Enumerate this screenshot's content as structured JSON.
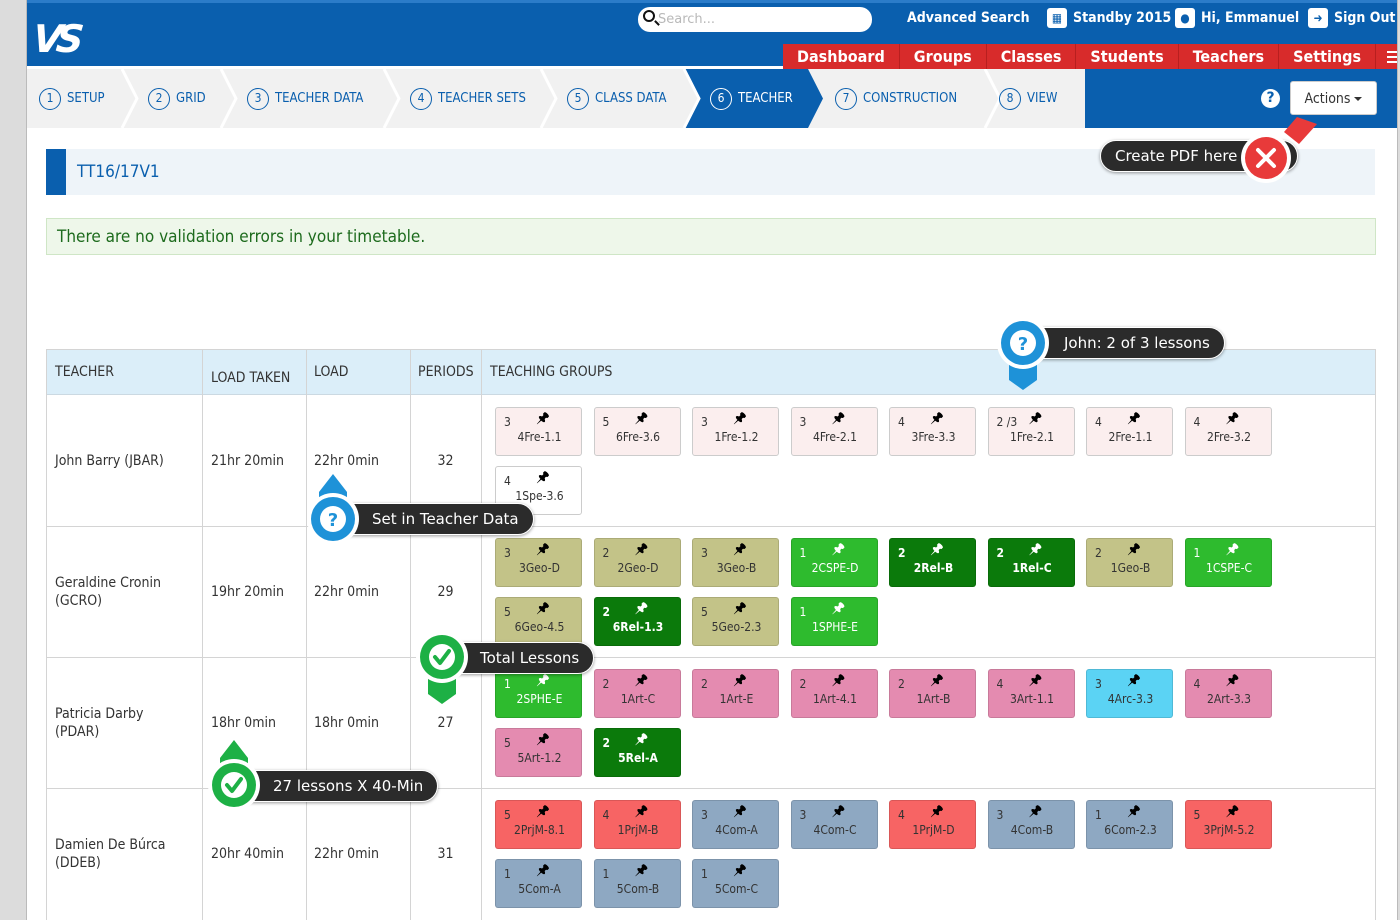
{
  "header": {
    "logo": "VS",
    "search_placeholder": "Search...",
    "advanced_search": "Advanced Search",
    "calendar": "Standby 2015",
    "user": "Hi, Emmanuel",
    "signout": "Sign Out",
    "nav": [
      "Dashboard",
      "Groups",
      "Classes",
      "Students",
      "Teachers",
      "Settings"
    ]
  },
  "steps": [
    {
      "num": "1",
      "label": "SETUP"
    },
    {
      "num": "2",
      "label": "GRID"
    },
    {
      "num": "3",
      "label": "TEACHER DATA"
    },
    {
      "num": "4",
      "label": "TEACHER SETS"
    },
    {
      "num": "5",
      "label": "CLASS DATA"
    },
    {
      "num": "6",
      "label": "TEACHER",
      "active": true
    },
    {
      "num": "7",
      "label": "CONSTRUCTION"
    },
    {
      "num": "8",
      "label": "VIEW"
    }
  ],
  "actions_label": "Actions",
  "help_symbol": "?",
  "timetable_name": "TT16/17V1",
  "validation_message": "There are no validation errors in your timetable.",
  "table": {
    "headers": {
      "teacher": "TEACHER",
      "load_taken": "LOAD TAKEN",
      "load": "LOAD",
      "periods": "PERIODS",
      "groups": "TEACHING GROUPS"
    },
    "rows": [
      {
        "teacher_line1": "John Barry (JBAR)",
        "teacher_line2": "",
        "load_taken": "21hr 20min",
        "load": "22hr 0min",
        "periods": "32",
        "groups": [
          {
            "count": "3",
            "code": "4Fre-1.1",
            "color": "#fbeeee",
            "text": "#333"
          },
          {
            "count": "5",
            "code": "6Fre-3.6",
            "color": "#fbeeee",
            "text": "#333"
          },
          {
            "count": "3",
            "code": "1Fre-1.2",
            "color": "#fbeeee",
            "text": "#333"
          },
          {
            "count": "3",
            "code": "4Fre-2.1",
            "color": "#fbeeee",
            "text": "#333"
          },
          {
            "count": "4",
            "code": "3Fre-3.3",
            "color": "#fbeeee",
            "text": "#333"
          },
          {
            "count": "2 /3",
            "code": "1Fre-2.1",
            "color": "#fbeeee",
            "text": "#333"
          },
          {
            "count": "4",
            "code": "2Fre-1.1",
            "color": "#fbeeee",
            "text": "#333"
          },
          {
            "count": "4",
            "code": "2Fre-3.2",
            "color": "#fbeeee",
            "text": "#333"
          },
          {
            "count": "4",
            "code": "1Spe-3.6",
            "color": "#ffffff",
            "text": "#333"
          }
        ]
      },
      {
        "teacher_line1": "Geraldine Cronin",
        "teacher_line2": "(GCRO)",
        "load_taken": "19hr 20min",
        "load": "22hr 0min",
        "periods": "29",
        "groups": [
          {
            "count": "3",
            "code": "3Geo-D",
            "color": "#c3c388",
            "text": "#333"
          },
          {
            "count": "2",
            "code": "2Geo-D",
            "color": "#c3c388",
            "text": "#333"
          },
          {
            "count": "3",
            "code": "3Geo-B",
            "color": "#c3c388",
            "text": "#333"
          },
          {
            "count": "1",
            "code": "2CSPE-D",
            "color": "#2ebb2e",
            "text": "#fff"
          },
          {
            "count": "2",
            "code": "2Rel-B",
            "color": "#0b7a0b",
            "text": "#fff",
            "bold": true
          },
          {
            "count": "2",
            "code": "1Rel-C",
            "color": "#0b7a0b",
            "text": "#fff",
            "bold": true
          },
          {
            "count": "2",
            "code": "1Geo-B",
            "color": "#c3c388",
            "text": "#333"
          },
          {
            "count": "1",
            "code": "1CSPE-C",
            "color": "#2ebb2e",
            "text": "#fff"
          },
          {
            "count": "5",
            "code": "6Geo-4.5",
            "color": "#c3c388",
            "text": "#333"
          },
          {
            "count": "2",
            "code": "6Rel-1.3",
            "color": "#0b7a0b",
            "text": "#fff",
            "bold": true
          },
          {
            "count": "5",
            "code": "5Geo-2.3",
            "color": "#c3c388",
            "text": "#333"
          },
          {
            "count": "1",
            "code": "1SPHE-E",
            "color": "#2ebb2e",
            "text": "#fff"
          }
        ]
      },
      {
        "teacher_line1": "Patricia Darby",
        "teacher_line2": "(PDAR)",
        "load_taken": "18hr 0min",
        "load": "18hr 0min",
        "periods": "27",
        "groups": [
          {
            "count": "1",
            "code": "2SPHE-E",
            "color": "#2ebb2e",
            "text": "#fff"
          },
          {
            "count": "2",
            "code": "1Art-C",
            "color": "#e48bb0",
            "text": "#333"
          },
          {
            "count": "2",
            "code": "1Art-E",
            "color": "#e48bb0",
            "text": "#333"
          },
          {
            "count": "2",
            "code": "1Art-4.1",
            "color": "#e48bb0",
            "text": "#333"
          },
          {
            "count": "2",
            "code": "1Art-B",
            "color": "#e48bb0",
            "text": "#333"
          },
          {
            "count": "4",
            "code": "3Art-1.1",
            "color": "#e48bb0",
            "text": "#333"
          },
          {
            "count": "3",
            "code": "4Arc-3.3",
            "color": "#5bd3f4",
            "text": "#333"
          },
          {
            "count": "4",
            "code": "2Art-3.3",
            "color": "#e48bb0",
            "text": "#333"
          },
          {
            "count": "5",
            "code": "5Art-1.2",
            "color": "#e48bb0",
            "text": "#333"
          },
          {
            "count": "2",
            "code": "5Rel-A",
            "color": "#0b7a0b",
            "text": "#fff",
            "bold": true
          }
        ]
      },
      {
        "teacher_line1": "Damien De Búrca",
        "teacher_line2": "(DDEB)",
        "load_taken": "20hr 40min",
        "load": "22hr 0min",
        "periods": "31",
        "groups": [
          {
            "count": "5",
            "code": "2PrjM-8.1",
            "color": "#f76464",
            "text": "#333"
          },
          {
            "count": "4",
            "code": "1PrjM-B",
            "color": "#f76464",
            "text": "#333"
          },
          {
            "count": "3",
            "code": "4Com-A",
            "color": "#8ea8c2",
            "text": "#333"
          },
          {
            "count": "3",
            "code": "4Com-C",
            "color": "#8ea8c2",
            "text": "#333"
          },
          {
            "count": "4",
            "code": "1PrjM-D",
            "color": "#f76464",
            "text": "#333"
          },
          {
            "count": "3",
            "code": "4Com-B",
            "color": "#8ea8c2",
            "text": "#333"
          },
          {
            "count": "1",
            "code": "6Com-2.3",
            "color": "#8ea8c2",
            "text": "#333"
          },
          {
            "count": "5",
            "code": "3PrjM-5.2",
            "color": "#f76464",
            "text": "#333"
          },
          {
            "count": "1",
            "code": "5Com-A",
            "color": "#8ea8c2",
            "text": "#333"
          },
          {
            "count": "1",
            "code": "5Com-B",
            "color": "#8ea8c2",
            "text": "#333"
          },
          {
            "count": "1",
            "code": "5Com-C",
            "color": "#8ea8c2",
            "text": "#333"
          }
        ]
      }
    ]
  },
  "callouts": {
    "create_pdf": "Create PDF here",
    "john_lessons": "John: 2 of 3 lessons",
    "teacher_data": "Set in Teacher Data",
    "total_lessons": "Total Lessons",
    "lessons_40": "27 lessons X 40-Min"
  },
  "colors": {
    "brand_blue": "#0a5fae",
    "nav_red": "#d82b2b",
    "callout_blue": "#1e92d8",
    "callout_green": "#1db045",
    "callout_red": "#e83a3a"
  }
}
